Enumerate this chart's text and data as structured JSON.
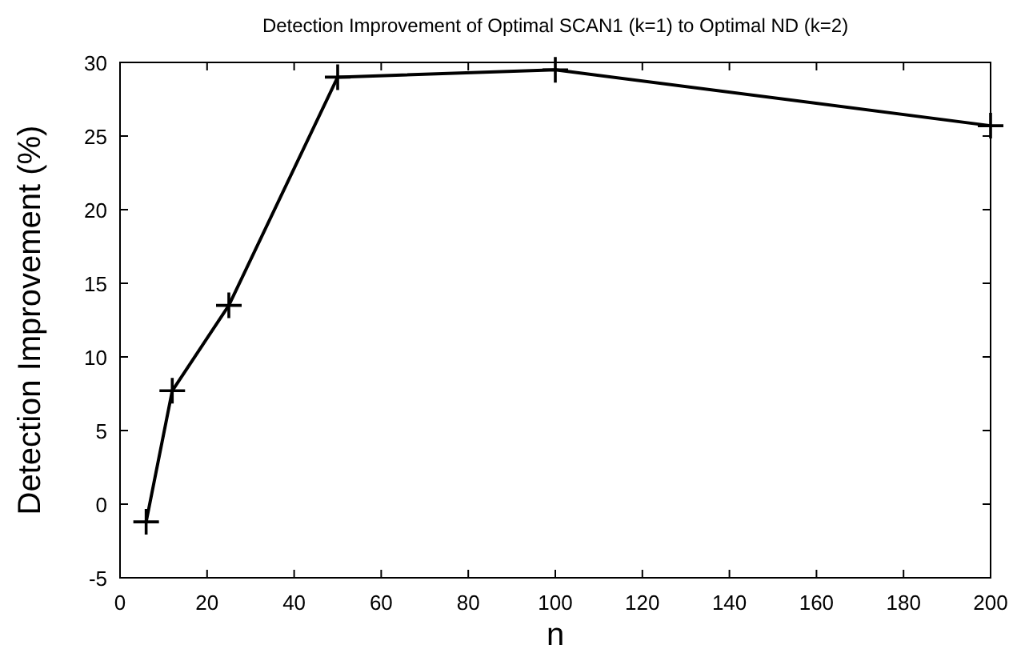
{
  "chart_data": {
    "type": "line",
    "title": "Detection Improvement of Optimal SCAN1 (k=1) to Optimal ND (k=2)",
    "xlabel": "n",
    "ylabel": "Detection Improvement (%)",
    "x": [
      6,
      12,
      25,
      50,
      100,
      200
    ],
    "series": [
      {
        "color": "#000000",
        "values": [
          -1.2,
          7.7,
          13.5,
          29,
          29.5,
          25.7
        ]
      }
    ],
    "xlim": [
      0,
      200
    ],
    "xticks": [
      0,
      20,
      40,
      60,
      80,
      100,
      120,
      140,
      160,
      180,
      200
    ],
    "ylim": [
      -5,
      30
    ],
    "yticks": [
      -5,
      0,
      5,
      10,
      15,
      20,
      25,
      30
    ],
    "grid": false,
    "marker": "cross",
    "line_style": "solid"
  }
}
